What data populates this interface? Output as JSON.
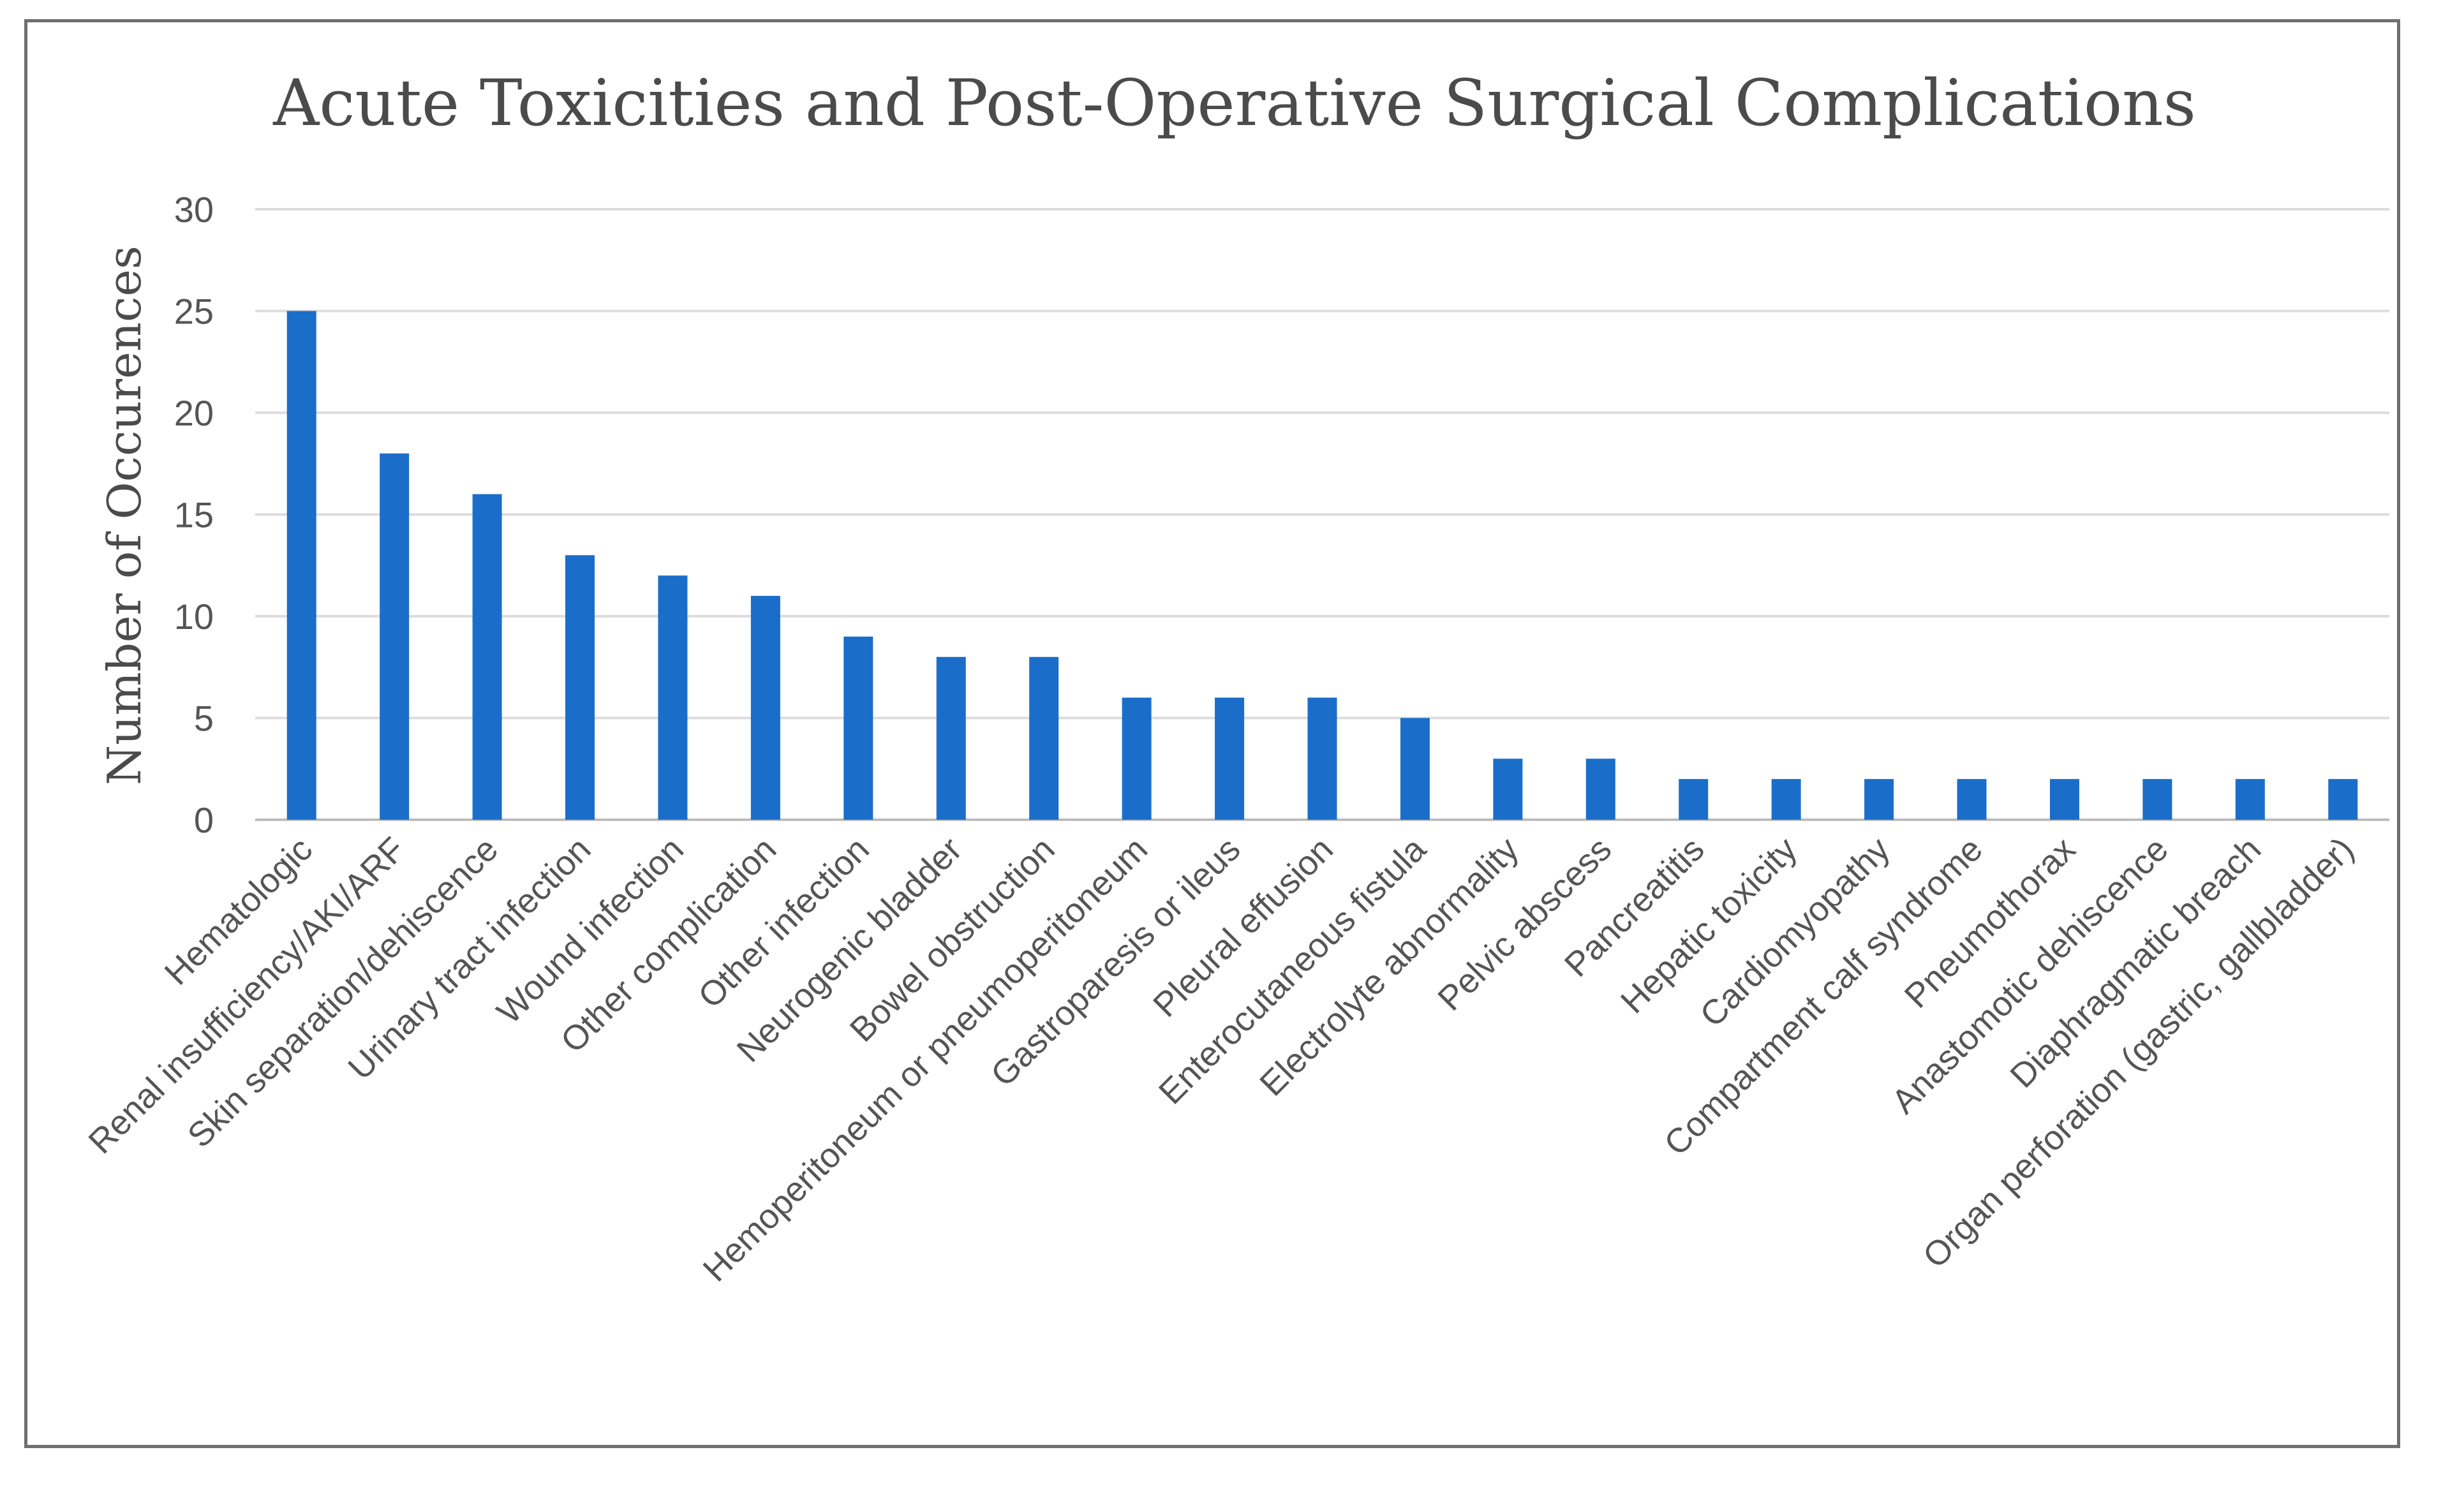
{
  "chart_data": {
    "type": "bar",
    "title": "Acute Toxicities and Post-Operative Surgical Complications",
    "xlabel": "",
    "ylabel": "Number of Occurences",
    "ylim": [
      0,
      30
    ],
    "yticks": [
      0,
      5,
      10,
      15,
      20,
      25,
      30
    ],
    "grid": true,
    "colors": {
      "bar": "#1a6ec9",
      "grid": "#dcdcdc",
      "text": "#555555"
    },
    "categories": [
      "Hematologic",
      "Renal insufficiency/AKI/ARF",
      "Skin separation/dehiscence",
      "Urinary tract infection",
      "Wound infection",
      "Other complication",
      "Other infection",
      "Neurogenic bladder",
      "Bowel obstruction",
      "Hemoperitoneum or pneumoperitoneum",
      "Gastroparesis or ileus",
      "Pleural effusion",
      "Enterocutaneous fistula",
      "Electrolyte abnormality",
      "Pelvic abscess",
      "Pancreatitis",
      "Hepatic toxicity",
      "Cardiomyopathy",
      "Compartment calf syndrome",
      "Pneumothorax",
      "Anastomotic dehiscence",
      "Diaphragmatic breach",
      "Organ perforation (gastric, gallbladder)"
    ],
    "values": [
      25,
      18,
      16,
      13,
      12,
      11,
      9,
      8,
      8,
      6,
      6,
      6,
      5,
      3,
      3,
      2,
      2,
      2,
      2,
      2,
      2,
      2,
      2
    ]
  }
}
